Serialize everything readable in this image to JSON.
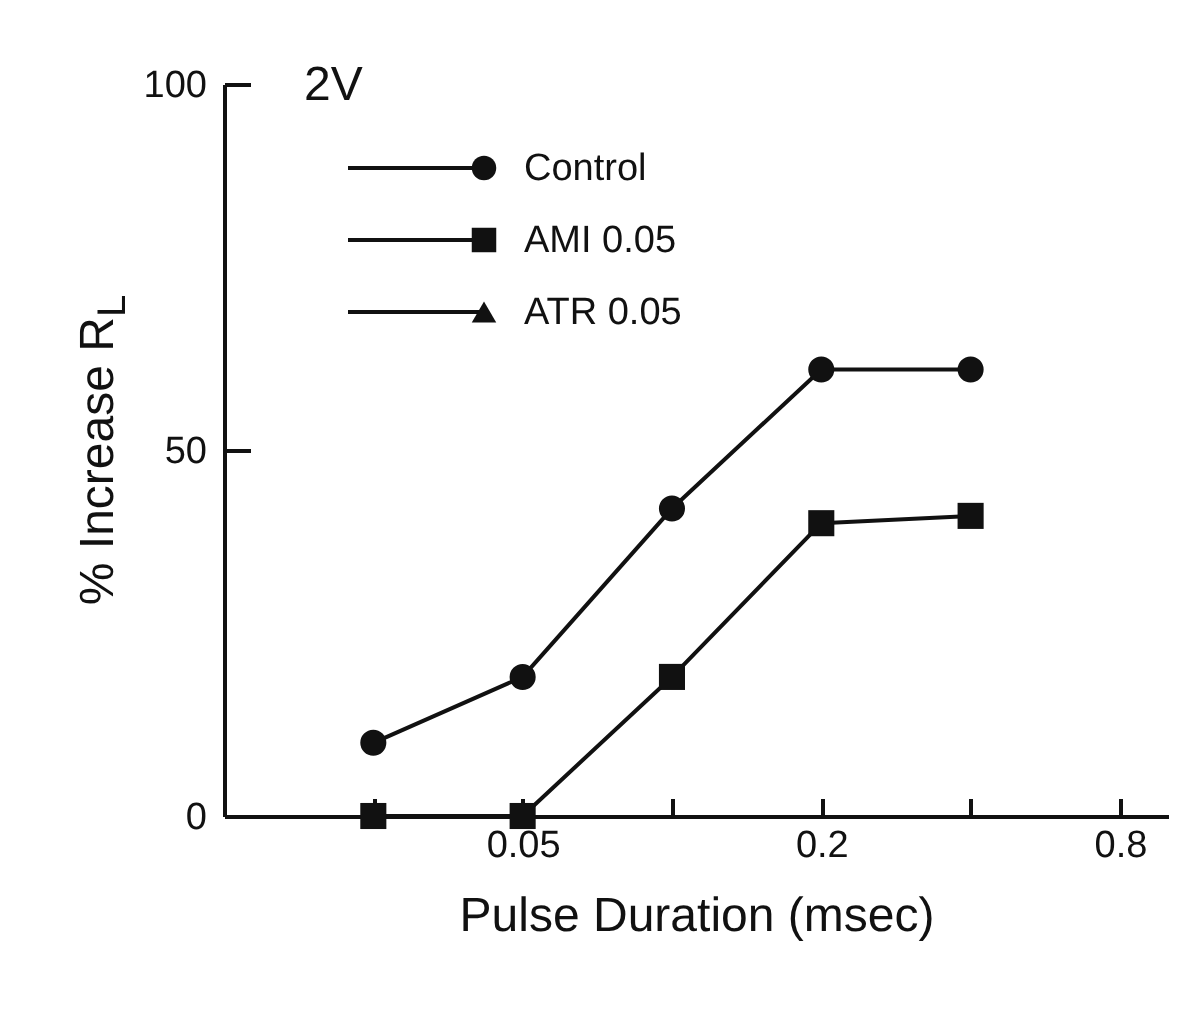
{
  "chart_data": {
    "type": "line",
    "title": "2V",
    "xlabel": "Pulse Duration (msec)",
    "ylabel": "% Increase R$_{L}$",
    "x": [
      0.025,
      0.05,
      0.1,
      0.2,
      0.4
    ],
    "series": [
      {
        "name": "Control",
        "color": "#111111",
        "marker": "circle",
        "values": [
          10,
          19,
          42,
          61,
          61
        ]
      },
      {
        "name": "AMI 0.05",
        "color": "#111111",
        "marker": "square",
        "values": [
          0,
          0,
          19,
          40,
          41
        ]
      },
      {
        "name": "ATR 0.05",
        "color": "#111111",
        "marker": "triangle",
        "values": [
          null,
          null,
          null,
          null,
          null
        ]
      }
    ],
    "log": "x",
    "xlim": [
      0.0125,
      1.0
    ],
    "xticks": [
      {
        "value": 0.025,
        "label": null
      },
      0.05,
      {
        "value": 0.1,
        "label": null
      },
      0.2,
      {
        "value": 0.4,
        "label": null
      },
      0.8
    ],
    "ylim": [
      0,
      100
    ],
    "yticks": [
      0,
      50,
      100
    ],
    "grid": false,
    "legend": "top left",
    "line_style": "solid"
  }
}
